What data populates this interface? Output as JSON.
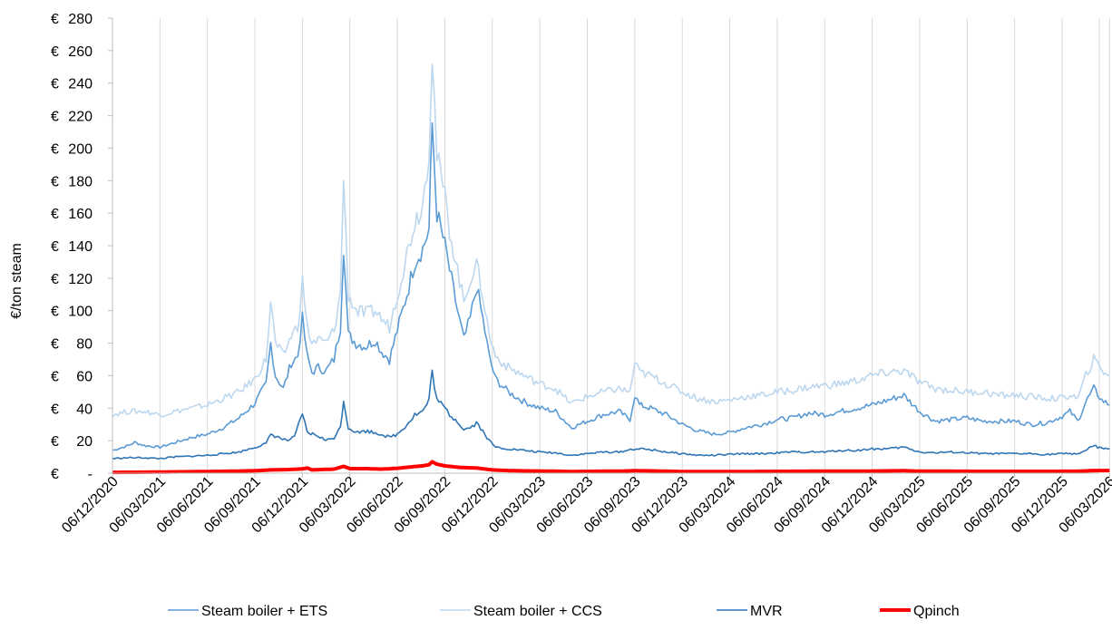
{
  "chart_data": {
    "type": "line",
    "title": "",
    "xlabel": "",
    "ylabel": "€/ton steam",
    "ylim": [
      0,
      280
    ],
    "y_tick_labels": [
      "€ -",
      "€ 20",
      "€ 40",
      "€ 60",
      "€ 80",
      "€ 100",
      "€ 120",
      "€ 140",
      "€ 160",
      "€ 180",
      "€ 200",
      "€ 220",
      "€ 240",
      "€ 260",
      "€ 280"
    ],
    "x_tick_labels": [
      "06/12/2020",
      "06/03/2021",
      "06/06/2021",
      "06/09/2021",
      "06/12/2021",
      "06/03/2022",
      "06/06/2022",
      "06/09/2022",
      "06/12/2022",
      "06/03/2023",
      "06/06/2023",
      "06/09/2023",
      "06/12/2023",
      "06/03/2024",
      "06/06/2024",
      "06/09/2024",
      "06/12/2024",
      "06/03/2025",
      "06/06/2025",
      "06/09/2025",
      "06/12/2025",
      "06/03/2026"
    ],
    "grid": "vertical",
    "legend_position": "bottom",
    "x_units": "months since 06/12/2020",
    "series": [
      {
        "name": "Steam boiler + ETS",
        "color": "#5b9bd5",
        "width": 1.6,
        "points": [
          [
            0,
            14
          ],
          [
            1,
            17
          ],
          [
            1.4,
            19
          ],
          [
            2,
            17
          ],
          [
            3,
            16
          ],
          [
            4,
            19
          ],
          [
            5,
            22
          ],
          [
            6,
            24
          ],
          [
            7,
            28
          ],
          [
            8,
            34
          ],
          [
            9,
            43
          ],
          [
            9.7,
            55
          ],
          [
            10,
            80
          ],
          [
            10.3,
            60
          ],
          [
            10.8,
            52
          ],
          [
            11.3,
            68
          ],
          [
            11.7,
            72
          ],
          [
            12,
            95
          ],
          [
            12.3,
            72
          ],
          [
            12.6,
            62
          ],
          [
            13,
            65
          ],
          [
            13.5,
            63
          ],
          [
            14,
            70
          ],
          [
            14.4,
            90
          ],
          [
            14.6,
            140
          ],
          [
            14.9,
            85
          ],
          [
            15.4,
            80
          ],
          [
            16,
            78
          ],
          [
            16.6,
            82
          ],
          [
            17,
            75
          ],
          [
            17.5,
            70
          ],
          [
            18,
            88
          ],
          [
            18.6,
            110
          ],
          [
            19.1,
            130
          ],
          [
            19.6,
            138
          ],
          [
            20,
            150
          ],
          [
            20.2,
            215
          ],
          [
            20.5,
            160
          ],
          [
            21,
            140
          ],
          [
            21.3,
            125
          ],
          [
            21.8,
            100
          ],
          [
            22.2,
            82
          ],
          [
            22.6,
            95
          ],
          [
            23,
            115
          ],
          [
            23.4,
            95
          ],
          [
            23.8,
            72
          ],
          [
            24.2,
            58
          ],
          [
            25,
            50
          ],
          [
            26,
            44
          ],
          [
            27,
            40
          ],
          [
            28,
            38
          ],
          [
            28.5,
            33
          ],
          [
            29,
            28
          ],
          [
            30,
            32
          ],
          [
            31,
            36
          ],
          [
            32,
            38
          ],
          [
            32.7,
            33
          ],
          [
            33,
            48
          ],
          [
            33.3,
            42
          ],
          [
            34,
            40
          ],
          [
            35,
            36
          ],
          [
            36,
            30
          ],
          [
            37,
            26
          ],
          [
            38,
            24
          ],
          [
            39,
            25
          ],
          [
            40,
            28
          ],
          [
            41,
            30
          ],
          [
            42,
            33
          ],
          [
            43,
            34
          ],
          [
            44,
            37
          ],
          [
            45,
            36
          ],
          [
            46,
            38
          ],
          [
            47,
            40
          ],
          [
            48,
            42
          ],
          [
            49,
            45
          ],
          [
            50,
            48
          ],
          [
            51,
            38
          ],
          [
            52,
            32
          ],
          [
            53,
            33
          ],
          [
            54,
            34
          ],
          [
            55,
            32
          ],
          [
            56,
            32
          ],
          [
            57,
            32
          ],
          [
            58,
            30
          ],
          [
            59,
            31
          ],
          [
            60,
            35
          ],
          [
            60.5,
            38
          ],
          [
            61,
            32
          ],
          [
            61.5,
            44
          ],
          [
            62,
            52
          ],
          [
            62.5,
            45
          ],
          [
            63,
            42
          ]
        ]
      },
      {
        "name": "Steam boiler + CCS",
        "color": "#bdd7ee",
        "width": 1.6,
        "points": [
          [
            0,
            36
          ],
          [
            1,
            38
          ],
          [
            2,
            38
          ],
          [
            3,
            36
          ],
          [
            4,
            38
          ],
          [
            5,
            40
          ],
          [
            6,
            42
          ],
          [
            7,
            46
          ],
          [
            8,
            50
          ],
          [
            9,
            58
          ],
          [
            9.7,
            70
          ],
          [
            10,
            105
          ],
          [
            10.3,
            80
          ],
          [
            10.8,
            72
          ],
          [
            11.3,
            85
          ],
          [
            11.7,
            90
          ],
          [
            12,
            118
          ],
          [
            12.3,
            90
          ],
          [
            12.6,
            80
          ],
          [
            13,
            82
          ],
          [
            13.5,
            80
          ],
          [
            14,
            88
          ],
          [
            14.4,
            110
          ],
          [
            14.6,
            182
          ],
          [
            14.9,
            110
          ],
          [
            15.4,
            100
          ],
          [
            16,
            98
          ],
          [
            16.6,
            100
          ],
          [
            17,
            95
          ],
          [
            17.5,
            90
          ],
          [
            18,
            110
          ],
          [
            18.6,
            135
          ],
          [
            19.1,
            155
          ],
          [
            19.6,
            165
          ],
          [
            20,
            200
          ],
          [
            20.2,
            260
          ],
          [
            20.5,
            195
          ],
          [
            21,
            170
          ],
          [
            21.3,
            150
          ],
          [
            21.8,
            125
          ],
          [
            22.2,
            105
          ],
          [
            22.6,
            120
          ],
          [
            23,
            128
          ],
          [
            23.4,
            110
          ],
          [
            23.8,
            85
          ],
          [
            24.2,
            72
          ],
          [
            25,
            65
          ],
          [
            26,
            60
          ],
          [
            27,
            55
          ],
          [
            28,
            52
          ],
          [
            28.5,
            47
          ],
          [
            29,
            43
          ],
          [
            30,
            47
          ],
          [
            31,
            50
          ],
          [
            32,
            52
          ],
          [
            32.7,
            50
          ],
          [
            33,
            68
          ],
          [
            33.3,
            62
          ],
          [
            34,
            60
          ],
          [
            35,
            55
          ],
          [
            36,
            50
          ],
          [
            37,
            46
          ],
          [
            38,
            44
          ],
          [
            39,
            45
          ],
          [
            40,
            47
          ],
          [
            41,
            48
          ],
          [
            42,
            50
          ],
          [
            43,
            51
          ],
          [
            44,
            53
          ],
          [
            45,
            54
          ],
          [
            46,
            55
          ],
          [
            47,
            57
          ],
          [
            48,
            60
          ],
          [
            49,
            62
          ],
          [
            50,
            63
          ],
          [
            51,
            56
          ],
          [
            52,
            52
          ],
          [
            53,
            51
          ],
          [
            54,
            50
          ],
          [
            55,
            50
          ],
          [
            56,
            48
          ],
          [
            57,
            48
          ],
          [
            58,
            47
          ],
          [
            59,
            46
          ],
          [
            60,
            46
          ],
          [
            60.5,
            48
          ],
          [
            61,
            46
          ],
          [
            61.5,
            60
          ],
          [
            62,
            70
          ],
          [
            62.5,
            64
          ],
          [
            63,
            60
          ]
        ]
      },
      {
        "name": "MVR",
        "color": "#2e75b6",
        "width": 1.6,
        "points": [
          [
            0,
            9
          ],
          [
            1,
            9.5
          ],
          [
            2,
            9.5
          ],
          [
            3,
            9
          ],
          [
            4,
            10
          ],
          [
            5,
            10.5
          ],
          [
            6,
            11
          ],
          [
            7,
            12
          ],
          [
            8,
            13
          ],
          [
            9,
            16
          ],
          [
            9.7,
            18
          ],
          [
            10,
            24
          ],
          [
            10.5,
            22
          ],
          [
            11,
            20
          ],
          [
            11.5,
            22
          ],
          [
            12,
            37
          ],
          [
            12.3,
            25
          ],
          [
            13,
            23
          ],
          [
            13.5,
            20
          ],
          [
            14,
            22
          ],
          [
            14.4,
            28
          ],
          [
            14.6,
            45
          ],
          [
            14.9,
            28
          ],
          [
            15.5,
            25
          ],
          [
            16,
            26
          ],
          [
            16.6,
            25
          ],
          [
            17,
            24
          ],
          [
            17.5,
            22
          ],
          [
            18,
            24
          ],
          [
            18.6,
            30
          ],
          [
            19.1,
            36
          ],
          [
            19.6,
            38
          ],
          [
            20,
            45
          ],
          [
            20.2,
            63
          ],
          [
            20.5,
            45
          ],
          [
            21,
            40
          ],
          [
            21.3,
            36
          ],
          [
            21.8,
            32
          ],
          [
            22.2,
            27
          ],
          [
            22.6,
            28
          ],
          [
            23,
            31
          ],
          [
            23.4,
            26
          ],
          [
            23.8,
            20
          ],
          [
            24.2,
            16
          ],
          [
            25,
            15
          ],
          [
            26,
            14
          ],
          [
            27,
            13
          ],
          [
            28,
            12.5
          ],
          [
            29,
            11
          ],
          [
            30,
            12
          ],
          [
            31,
            13
          ],
          [
            32,
            13
          ],
          [
            33,
            15
          ],
          [
            34,
            14.5
          ],
          [
            35,
            13
          ],
          [
            36,
            12
          ],
          [
            37,
            11
          ],
          [
            38,
            11
          ],
          [
            39,
            11.5
          ],
          [
            40,
            12
          ],
          [
            41,
            12
          ],
          [
            42,
            12.5
          ],
          [
            43,
            13
          ],
          [
            44,
            13
          ],
          [
            45,
            13
          ],
          [
            46,
            14
          ],
          [
            47,
            14
          ],
          [
            48,
            15
          ],
          [
            49,
            15
          ],
          [
            50,
            16
          ],
          [
            51,
            13
          ],
          [
            52,
            12.5
          ],
          [
            53,
            13
          ],
          [
            54,
            12.5
          ],
          [
            55,
            12
          ],
          [
            56,
            12
          ],
          [
            57,
            12
          ],
          [
            58,
            12
          ],
          [
            59,
            11.5
          ],
          [
            60,
            12
          ],
          [
            61,
            12
          ],
          [
            61.5,
            14
          ],
          [
            62,
            17
          ],
          [
            62.5,
            15
          ],
          [
            63,
            15
          ]
        ]
      },
      {
        "name": "Qpinch",
        "color": "#ff0000",
        "width": 4,
        "points": [
          [
            0,
            0.5
          ],
          [
            2,
            0.6
          ],
          [
            4,
            0.8
          ],
          [
            6,
            1
          ],
          [
            8,
            1.3
          ],
          [
            9,
            1.5
          ],
          [
            10,
            2
          ],
          [
            11,
            2.2
          ],
          [
            12,
            2.6
          ],
          [
            12.3,
            3.2
          ],
          [
            12.6,
            2
          ],
          [
            13,
            2.2
          ],
          [
            14,
            2.5
          ],
          [
            14.6,
            4.2
          ],
          [
            15,
            2.8
          ],
          [
            16,
            2.8
          ],
          [
            17,
            2.5
          ],
          [
            18,
            3
          ],
          [
            19,
            4
          ],
          [
            19.6,
            4.5
          ],
          [
            20,
            5.2
          ],
          [
            20.2,
            7
          ],
          [
            20.5,
            5.5
          ],
          [
            21,
            4.5
          ],
          [
            22,
            3.5
          ],
          [
            23,
            3.2
          ],
          [
            24,
            2
          ],
          [
            25,
            1.6
          ],
          [
            26,
            1.4
          ],
          [
            27,
            1.3
          ],
          [
            28,
            1.2
          ],
          [
            29,
            1
          ],
          [
            30,
            1.1
          ],
          [
            31,
            1.2
          ],
          [
            32,
            1.2
          ],
          [
            33,
            1.5
          ],
          [
            34,
            1.4
          ],
          [
            35,
            1.2
          ],
          [
            36,
            1
          ],
          [
            38,
            1
          ],
          [
            40,
            1
          ],
          [
            42,
            1.1
          ],
          [
            44,
            1.2
          ],
          [
            46,
            1.2
          ],
          [
            48,
            1.3
          ],
          [
            49,
            1.4
          ],
          [
            50,
            1.5
          ],
          [
            51,
            1.2
          ],
          [
            53,
            1.2
          ],
          [
            55,
            1.1
          ],
          [
            57,
            1.1
          ],
          [
            59,
            1.1
          ],
          [
            61,
            1.2
          ],
          [
            62,
            1.6
          ],
          [
            63,
            1.6
          ]
        ]
      }
    ]
  }
}
